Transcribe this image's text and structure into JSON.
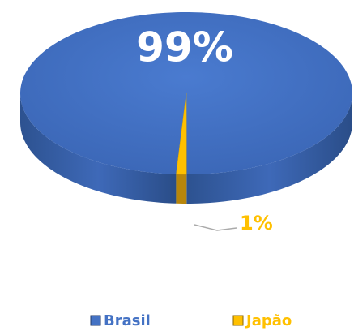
{
  "chart_data": {
    "type": "pie",
    "categories": [
      "Brasil",
      "Japão"
    ],
    "values": [
      99,
      1
    ],
    "value_labels": [
      "99%",
      "1%"
    ],
    "colors": [
      "#4472c4",
      "#ffc000"
    ],
    "legend": "bottom"
  }
}
